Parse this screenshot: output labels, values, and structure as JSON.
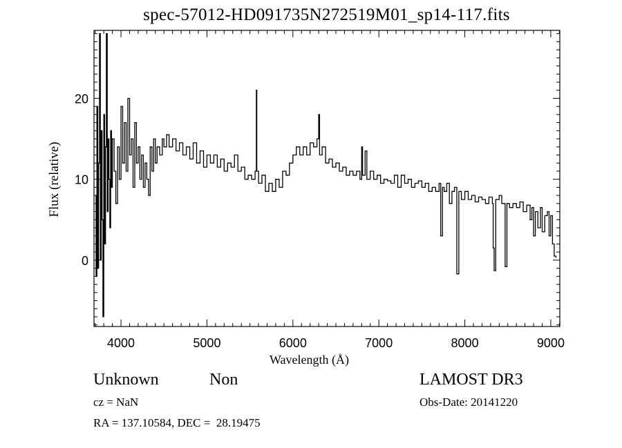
{
  "chart_data": {
    "type": "line",
    "title": "spec-57012-HD091735N272519M01_sp14-117.fits",
    "xlabel": "Wavelength (Å)",
    "ylabel": "Flux (relative)",
    "xlim": [
      3686,
      9105
    ],
    "ylim": [
      -8.2,
      28.4
    ],
    "xticks": [
      4000,
      5000,
      6000,
      7000,
      8000,
      9000
    ],
    "xtick_labels": [
      "4000",
      "5000",
      "6000",
      "7000",
      "8000",
      "9000"
    ],
    "yticks": [
      0,
      10,
      20
    ],
    "ytick_labels": [
      "0",
      "10",
      "20"
    ],
    "grid": false,
    "line_color": "#000000",
    "series": [
      {
        "name": "flux",
        "points": [
          [
            3700,
            8
          ],
          [
            3710,
            -2
          ],
          [
            3720,
            19
          ],
          [
            3730,
            -1
          ],
          [
            3740,
            12
          ],
          [
            3750,
            28
          ],
          [
            3760,
            0
          ],
          [
            3770,
            16
          ],
          [
            3780,
            5
          ],
          [
            3790,
            -7
          ],
          [
            3800,
            18
          ],
          [
            3810,
            2
          ],
          [
            3820,
            14
          ],
          [
            3830,
            28
          ],
          [
            3840,
            6
          ],
          [
            3850,
            15
          ],
          [
            3860,
            10
          ],
          [
            3870,
            4
          ],
          [
            3880,
            16
          ],
          [
            3890,
            9
          ],
          [
            3900,
            15
          ],
          [
            3920,
            11
          ],
          [
            3940,
            7
          ],
          [
            3960,
            14
          ],
          [
            3980,
            10
          ],
          [
            4000,
            19
          ],
          [
            4020,
            12
          ],
          [
            4040,
            17
          ],
          [
            4060,
            11
          ],
          [
            4080,
            20
          ],
          [
            4100,
            13
          ],
          [
            4120,
            15
          ],
          [
            4140,
            9
          ],
          [
            4160,
            17
          ],
          [
            4180,
            12
          ],
          [
            4200,
            14
          ],
          [
            4220,
            10
          ],
          [
            4240,
            13
          ],
          [
            4260,
            9
          ],
          [
            4280,
            12
          ],
          [
            4300,
            10
          ],
          [
            4320,
            8
          ],
          [
            4340,
            14
          ],
          [
            4360,
            11
          ],
          [
            4380,
            15
          ],
          [
            4400,
            12
          ],
          [
            4420,
            14
          ],
          [
            4450,
            13
          ],
          [
            4480,
            15
          ],
          [
            4500,
            14
          ],
          [
            4530,
            15.5
          ],
          [
            4560,
            14
          ],
          [
            4600,
            15
          ],
          [
            4640,
            13.5
          ],
          [
            4680,
            14.5
          ],
          [
            4720,
            13
          ],
          [
            4760,
            14
          ],
          [
            4800,
            12.5
          ],
          [
            4840,
            14.5
          ],
          [
            4880,
            12
          ],
          [
            4920,
            13.5
          ],
          [
            4960,
            11.5
          ],
          [
            5000,
            13
          ],
          [
            5040,
            12
          ],
          [
            5080,
            13
          ],
          [
            5120,
            11.5
          ],
          [
            5160,
            12.5
          ],
          [
            5200,
            11
          ],
          [
            5240,
            12
          ],
          [
            5280,
            11.5
          ],
          [
            5320,
            13
          ],
          [
            5360,
            11
          ],
          [
            5400,
            11.5
          ],
          [
            5440,
            10
          ],
          [
            5480,
            10.5
          ],
          [
            5520,
            10
          ],
          [
            5560,
            11
          ],
          [
            5575,
            21
          ],
          [
            5580,
            11
          ],
          [
            5600,
            9.5
          ],
          [
            5640,
            10.5
          ],
          [
            5680,
            8.5
          ],
          [
            5720,
            9.5
          ],
          [
            5760,
            8.5
          ],
          [
            5800,
            10
          ],
          [
            5840,
            9
          ],
          [
            5880,
            11
          ],
          [
            5920,
            10.5
          ],
          [
            5960,
            12
          ],
          [
            6000,
            13
          ],
          [
            6040,
            14
          ],
          [
            6080,
            13
          ],
          [
            6120,
            14
          ],
          [
            6160,
            13
          ],
          [
            6200,
            14.5
          ],
          [
            6240,
            14
          ],
          [
            6280,
            15
          ],
          [
            6300,
            18
          ],
          [
            6310,
            13
          ],
          [
            6340,
            14
          ],
          [
            6380,
            12
          ],
          [
            6420,
            12.5
          ],
          [
            6460,
            11.5
          ],
          [
            6500,
            12
          ],
          [
            6540,
            11
          ],
          [
            6580,
            11.5
          ],
          [
            6620,
            10.5
          ],
          [
            6660,
            11
          ],
          [
            6700,
            10.5
          ],
          [
            6740,
            11
          ],
          [
            6780,
            10
          ],
          [
            6800,
            14
          ],
          [
            6810,
            10.5
          ],
          [
            6840,
            13.5
          ],
          [
            6860,
            10
          ],
          [
            6900,
            11
          ],
          [
            6940,
            10
          ],
          [
            6980,
            10.5
          ],
          [
            7020,
            9.5
          ],
          [
            7060,
            10
          ],
          [
            7100,
            9.8
          ],
          [
            7140,
            9.5
          ],
          [
            7180,
            10.5
          ],
          [
            7220,
            9
          ],
          [
            7260,
            10.5
          ],
          [
            7300,
            9.5
          ],
          [
            7340,
            10
          ],
          [
            7380,
            9
          ],
          [
            7420,
            9.5
          ],
          [
            7460,
            9.8
          ],
          [
            7500,
            9
          ],
          [
            7540,
            9.5
          ],
          [
            7580,
            8.5
          ],
          [
            7620,
            9
          ],
          [
            7660,
            8.5
          ],
          [
            7700,
            9.5
          ],
          [
            7720,
            3
          ],
          [
            7740,
            9
          ],
          [
            7760,
            8.5
          ],
          [
            7790,
            9.5
          ],
          [
            7820,
            7
          ],
          [
            7850,
            8.5
          ],
          [
            7880,
            9
          ],
          [
            7907,
            -1.7
          ],
          [
            7930,
            8.5
          ],
          [
            7960,
            7.5
          ],
          [
            8000,
            8.5
          ],
          [
            8040,
            7.5
          ],
          [
            8080,
            8
          ],
          [
            8120,
            7.2
          ],
          [
            8160,
            7.8
          ],
          [
            8200,
            7.5
          ],
          [
            8240,
            7
          ],
          [
            8280,
            7.8
          ],
          [
            8320,
            7
          ],
          [
            8330,
            1.5
          ],
          [
            8341,
            -1.3
          ],
          [
            8360,
            7.5
          ],
          [
            8400,
            8
          ],
          [
            8430,
            7
          ],
          [
            8469,
            -0.8
          ],
          [
            8490,
            7
          ],
          [
            8520,
            6.5
          ],
          [
            8560,
            7
          ],
          [
            8600,
            6.5
          ],
          [
            8640,
            7.2
          ],
          [
            8680,
            6
          ],
          [
            8720,
            6.8
          ],
          [
            8760,
            5
          ],
          [
            8780,
            6.5
          ],
          [
            8800,
            3
          ],
          [
            8820,
            6
          ],
          [
            8850,
            4
          ],
          [
            8880,
            6.5
          ],
          [
            8900,
            3.5
          ],
          [
            8930,
            5.5
          ],
          [
            8960,
            6
          ],
          [
            8980,
            3
          ],
          [
            9000,
            5.5
          ],
          [
            9020,
            2
          ],
          [
            9040,
            0.5
          ],
          [
            9060,
            0.3
          ]
        ]
      }
    ],
    "annotations": {
      "object_name": "Unknown",
      "object_type": "Non",
      "survey": "LAMOST DR3",
      "cz": "cz = NaN",
      "obs_date": "Obs-Date: 20141220",
      "radec": "RA = 137.10584, DEC =  28.19475"
    }
  }
}
